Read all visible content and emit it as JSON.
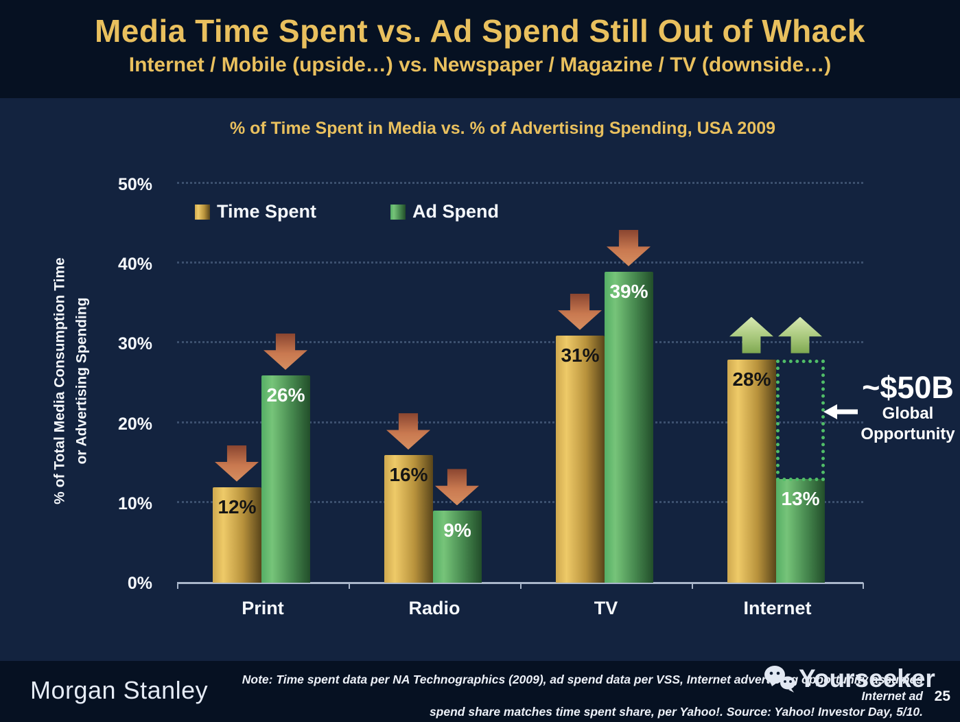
{
  "header": {
    "title": "Media Time Spent vs. Ad Spend Still Out of Whack",
    "subtitle": "Internet / Mobile (upside…) vs. Newspaper / Magazine / TV (downside…)"
  },
  "chart_data": {
    "type": "bar",
    "title": "% of Time Spent in Media vs. % of Advertising Spending, USA 2009",
    "categories": [
      "Print",
      "Radio",
      "TV",
      "Internet"
    ],
    "series": [
      {
        "name": "Time Spent",
        "values": [
          12,
          16,
          31,
          28
        ],
        "color_stops": [
          "#cfa94f",
          "#eeca68",
          "#b8923c",
          "#59451a"
        ],
        "label_color": "#151515"
      },
      {
        "name": "Ad Spend",
        "values": [
          26,
          9,
          39,
          13
        ],
        "color_stops": [
          "#55ae65",
          "#76c479",
          "#47894f",
          "#224e2a"
        ],
        "label_color": "#ffffff"
      }
    ],
    "value_suffix": "%",
    "ylabel_line1": "% of Total Media Consumption Time",
    "ylabel_line2": "or Advertising Spending",
    "yticks": [
      "0%",
      "10%",
      "20%",
      "30%",
      "40%",
      "50%"
    ],
    "ylim": [
      0,
      50
    ],
    "grid": "dotted horizontal gridlines every 10%",
    "legend_position": "top-left inside plot",
    "trend_arrows": {
      "Print": "down",
      "Radio": "down",
      "TV": "down",
      "Internet": "up"
    },
    "annotation": {
      "category": "Internet",
      "headline": "~$50B",
      "line1": "Global",
      "line2": "Opportunity",
      "meaning": "gap between Internet time spent 28% and ad spend 13%"
    }
  },
  "footer": {
    "logo": "Morgan Stanley",
    "note_line1": "Note: Time spent data per NA Technographics (2009), ad spend data per VSS, Internet advertising opportunity assumes Internet ad",
    "note_line2": "spend share matches time spent share, per Yahoo!. Source: Yahoo! Investor Day, 5/10.",
    "watermark": "Yourseeker",
    "page_number": "25"
  },
  "colors": {
    "background_outer": "#061122",
    "background_panel": "#13233f",
    "title_gold": "#e9c05e",
    "arrow_down": "#c97950",
    "arrow_up": "#a8c87c",
    "gap_box_green": "#50bd68",
    "axis_line": "#a9b6ca",
    "gridline": "#4a5f7e",
    "text_white": "#f4f7fb"
  }
}
